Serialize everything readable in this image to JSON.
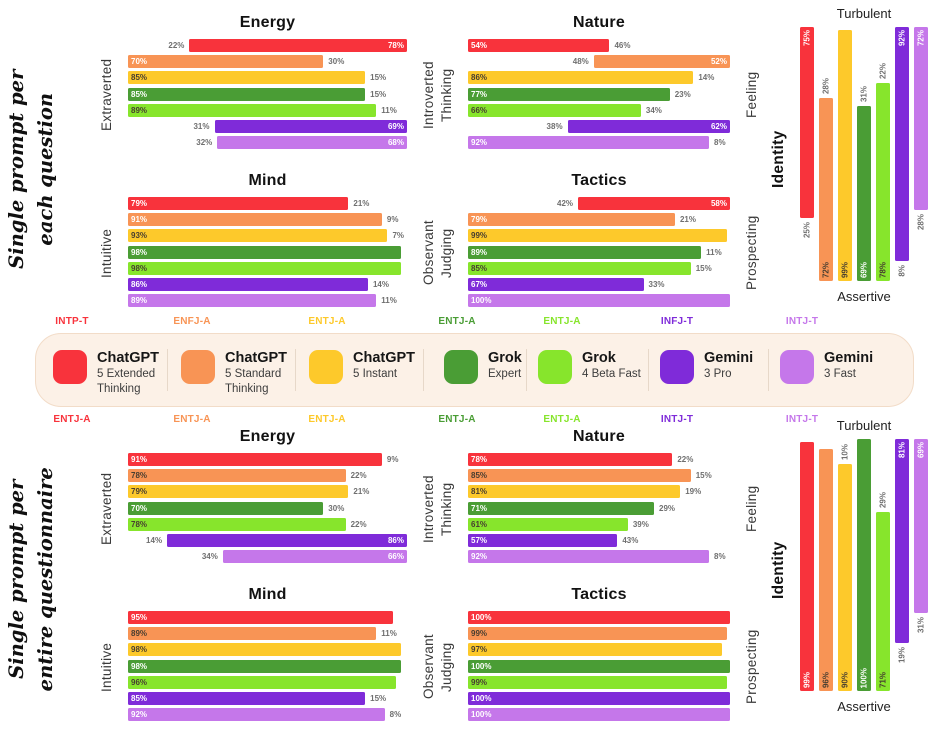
{
  "colors": {
    "red": "#F8333C",
    "orange": "#F89455",
    "yellow": "#FDC92B",
    "green": "#4A9D35",
    "lime": "#87E52C",
    "purple": "#7F2BD9",
    "lightpurple": "#C577EA"
  },
  "ui_colors": {
    "page_background": "#FFFFFF",
    "legend_background": "#FCF1E7",
    "legend_border": "#F2DCC8",
    "outside_label_gray": "#6F6F6F",
    "title_black": "#121212"
  },
  "color_order": [
    "red",
    "orange",
    "yellow",
    "green",
    "lime",
    "purple",
    "lightpurple"
  ],
  "legend": {
    "items": [
      {
        "name": "ChatGPT",
        "sub": "5 Extended Thinking",
        "color": "red"
      },
      {
        "name": "ChatGPT",
        "sub": "5 Standard Thinking",
        "color": "orange"
      },
      {
        "name": "ChatGPT",
        "sub": "5 Instant",
        "color": "yellow"
      },
      {
        "name": "Grok",
        "sub": "Expert",
        "color": "green"
      },
      {
        "name": "Grok",
        "sub": "4 Beta Fast",
        "color": "lime"
      },
      {
        "name": "Gemini",
        "sub": "3 Pro",
        "color": "purple"
      },
      {
        "name": "Gemini",
        "sub": "3 Fast",
        "color": "lightpurple"
      }
    ]
  },
  "sections": {
    "per_question": {
      "side_title_lines": [
        "Single prompt per",
        "each question"
      ],
      "mbti": [
        "INTP-T",
        "ENFJ-A",
        "ENTJ-A",
        "ENTJ-A",
        "ENTJ-A",
        "INFJ-T",
        "INTJ-T"
      ]
    },
    "per_questionnaire": {
      "side_title_lines": [
        "Single prompt per",
        "entire questionnaire"
      ],
      "mbti": [
        "ENTJ-A",
        "ENTJ-A",
        "ENTJ-A",
        "ENTJ-A",
        "ENTJ-A",
        "INTJ-T",
        "INTJ-T"
      ]
    }
  },
  "chart_data": [
    {
      "id": "q_energy",
      "section": "per_question",
      "type": "bar",
      "orientation": "horizontal",
      "title": "Energy",
      "pole_left": "Extraverted",
      "pole_right": "Introverted",
      "rows": [
        {
          "color": "red",
          "anchor": "right",
          "value": 78,
          "label_in": "78%",
          "label_out": "22%",
          "dark_label": false
        },
        {
          "color": "orange",
          "anchor": "left",
          "value": 70,
          "label_in": "70%",
          "label_out": "30%",
          "dark_label": false
        },
        {
          "color": "yellow",
          "anchor": "left",
          "value": 85,
          "label_in": "85%",
          "label_out": "15%",
          "dark_label": true
        },
        {
          "color": "green",
          "anchor": "left",
          "value": 85,
          "label_in": "85%",
          "label_out": "15%",
          "dark_label": false
        },
        {
          "color": "lime",
          "anchor": "left",
          "value": 89,
          "label_in": "89%",
          "label_out": "11%",
          "dark_label": true
        },
        {
          "color": "purple",
          "anchor": "right",
          "value": 69,
          "label_in": "69%",
          "label_out": "31%",
          "dark_label": false
        },
        {
          "color": "lightpurple",
          "anchor": "right",
          "value": 68,
          "label_in": "68%",
          "label_out": "32%",
          "dark_label": false
        }
      ]
    },
    {
      "id": "q_nature",
      "section": "per_question",
      "type": "bar",
      "orientation": "horizontal",
      "title": "Nature",
      "pole_left": "Thinking",
      "pole_right": "Feeling",
      "rows": [
        {
          "color": "red",
          "anchor": "left",
          "value": 54,
          "label_in": "54%",
          "label_out": "46%",
          "dark_label": false
        },
        {
          "color": "orange",
          "anchor": "right",
          "value": 52,
          "label_in": "52%",
          "label_out": "48%",
          "dark_label": false
        },
        {
          "color": "yellow",
          "anchor": "left",
          "value": 86,
          "label_in": "86%",
          "label_out": "14%",
          "dark_label": true
        },
        {
          "color": "green",
          "anchor": "left",
          "value": 77,
          "label_in": "77%",
          "label_out": "23%",
          "dark_label": false
        },
        {
          "color": "lime",
          "anchor": "left",
          "value": 66,
          "label_in": "66%",
          "label_out": "34%",
          "dark_label": true
        },
        {
          "color": "purple",
          "anchor": "right",
          "value": 62,
          "label_in": "62%",
          "label_out": "38%",
          "dark_label": false
        },
        {
          "color": "lightpurple",
          "anchor": "left",
          "value": 92,
          "label_in": "92%",
          "label_out": "8%",
          "dark_label": false
        }
      ]
    },
    {
      "id": "q_mind",
      "section": "per_question",
      "type": "bar",
      "orientation": "horizontal",
      "title": "Mind",
      "pole_left": "Intuitive",
      "pole_right": "Observant",
      "rows": [
        {
          "color": "red",
          "anchor": "left",
          "value": 79,
          "label_in": "79%",
          "label_out": "21%",
          "dark_label": false
        },
        {
          "color": "orange",
          "anchor": "left",
          "value": 91,
          "label_in": "91%",
          "label_out": "9%",
          "dark_label": false
        },
        {
          "color": "yellow",
          "anchor": "left",
          "value": 93,
          "label_in": "93%",
          "label_out": "7%",
          "dark_label": true
        },
        {
          "color": "green",
          "anchor": "left",
          "value": 98,
          "label_in": "98%",
          "label_out": "",
          "dark_label": false
        },
        {
          "color": "lime",
          "anchor": "left",
          "value": 98,
          "label_in": "98%",
          "label_out": "",
          "dark_label": true
        },
        {
          "color": "purple",
          "anchor": "left",
          "value": 86,
          "label_in": "86%",
          "label_out": "14%",
          "dark_label": false
        },
        {
          "color": "lightpurple",
          "anchor": "left",
          "value": 89,
          "label_in": "89%",
          "label_out": "11%",
          "dark_label": false
        }
      ]
    },
    {
      "id": "q_tactics",
      "section": "per_question",
      "type": "bar",
      "orientation": "horizontal",
      "title": "Tactics",
      "pole_left": "Judging",
      "pole_right": "Prospecting",
      "rows": [
        {
          "color": "red",
          "anchor": "right",
          "value": 58,
          "label_in": "58%",
          "label_out": "42%",
          "dark_label": false
        },
        {
          "color": "orange",
          "anchor": "left",
          "value": 79,
          "label_in": "79%",
          "label_out": "21%",
          "dark_label": false
        },
        {
          "color": "yellow",
          "anchor": "left",
          "value": 99,
          "label_in": "99%",
          "label_out": "",
          "dark_label": true
        },
        {
          "color": "green",
          "anchor": "left",
          "value": 89,
          "label_in": "89%",
          "label_out": "11%",
          "dark_label": false
        },
        {
          "color": "lime",
          "anchor": "left",
          "value": 85,
          "label_in": "85%",
          "label_out": "15%",
          "dark_label": true
        },
        {
          "color": "purple",
          "anchor": "left",
          "value": 67,
          "label_in": "67%",
          "label_out": "33%",
          "dark_label": false
        },
        {
          "color": "lightpurple",
          "anchor": "left",
          "value": 100,
          "label_in": "100%",
          "label_out": "",
          "dark_label": false
        }
      ]
    },
    {
      "id": "q_identity",
      "section": "per_question",
      "type": "bar",
      "orientation": "vertical",
      "title": "Identity",
      "pole_top": "Turbulent",
      "pole_bottom": "Assertive",
      "side_label": "Identity",
      "rows": [
        {
          "color": "red",
          "anchor": "top",
          "value": 75,
          "label_in": "75%",
          "label_out": "25%",
          "dark_label": false
        },
        {
          "color": "orange",
          "anchor": "bottom",
          "value": 72,
          "label_in": "72%",
          "label_out": "28%",
          "dark_label": true
        },
        {
          "color": "yellow",
          "anchor": "bottom",
          "value": 99,
          "label_in": "99%",
          "label_out": "",
          "dark_label": true
        },
        {
          "color": "green",
          "anchor": "bottom",
          "value": 69,
          "label_in": "69%",
          "label_out": "31%",
          "dark_label": false
        },
        {
          "color": "lime",
          "anchor": "bottom",
          "value": 78,
          "label_in": "78%",
          "label_out": "22%",
          "dark_label": true
        },
        {
          "color": "purple",
          "anchor": "top",
          "value": 92,
          "label_in": "92%",
          "label_out": "8%",
          "dark_label": false
        },
        {
          "color": "lightpurple",
          "anchor": "top",
          "value": 72,
          "label_in": "72%",
          "label_out": "28%",
          "dark_label": false
        }
      ]
    },
    {
      "id": "e_energy",
      "section": "per_questionnaire",
      "type": "bar",
      "orientation": "horizontal",
      "title": "Energy",
      "pole_left": "Extraverted",
      "pole_right": "Introverted",
      "rows": [
        {
          "color": "red",
          "anchor": "left",
          "value": 91,
          "label_in": "91%",
          "label_out": "9%",
          "dark_label": false
        },
        {
          "color": "orange",
          "anchor": "left",
          "value": 78,
          "label_in": "78%",
          "label_out": "22%",
          "dark_label": true
        },
        {
          "color": "yellow",
          "anchor": "left",
          "value": 79,
          "label_in": "79%",
          "label_out": "21%",
          "dark_label": true
        },
        {
          "color": "green",
          "anchor": "left",
          "value": 70,
          "label_in": "70%",
          "label_out": "30%",
          "dark_label": false
        },
        {
          "color": "lime",
          "anchor": "left",
          "value": 78,
          "label_in": "78%",
          "label_out": "22%",
          "dark_label": true
        },
        {
          "color": "purple",
          "anchor": "right",
          "value": 86,
          "label_in": "86%",
          "label_out": "14%",
          "dark_label": false
        },
        {
          "color": "lightpurple",
          "anchor": "right",
          "value": 66,
          "label_in": "66%",
          "label_out": "34%",
          "dark_label": false
        }
      ]
    },
    {
      "id": "e_nature",
      "section": "per_questionnaire",
      "type": "bar",
      "orientation": "horizontal",
      "title": "Nature",
      "pole_left": "Thinking",
      "pole_right": "Feeling",
      "rows": [
        {
          "color": "red",
          "anchor": "left",
          "value": 78,
          "label_in": "78%",
          "label_out": "22%",
          "dark_label": false
        },
        {
          "color": "orange",
          "anchor": "left",
          "value": 85,
          "label_in": "85%",
          "label_out": "15%",
          "dark_label": true
        },
        {
          "color": "yellow",
          "anchor": "left",
          "value": 81,
          "label_in": "81%",
          "label_out": "19%",
          "dark_label": true
        },
        {
          "color": "green",
          "anchor": "left",
          "value": 71,
          "label_in": "71%",
          "label_out": "29%",
          "dark_label": false
        },
        {
          "color": "lime",
          "anchor": "left",
          "value": 61,
          "label_in": "61%",
          "label_out": "39%",
          "dark_label": true
        },
        {
          "color": "purple",
          "anchor": "left",
          "value": 57,
          "label_in": "57%",
          "label_out": "43%",
          "dark_label": false
        },
        {
          "color": "lightpurple",
          "anchor": "left",
          "value": 92,
          "label_in": "92%",
          "label_out": "8%",
          "dark_label": false
        }
      ]
    },
    {
      "id": "e_mind",
      "section": "per_questionnaire",
      "type": "bar",
      "orientation": "horizontal",
      "title": "Mind",
      "pole_left": "Intuitive",
      "pole_right": "Observant",
      "rows": [
        {
          "color": "red",
          "anchor": "left",
          "value": 95,
          "label_in": "95%",
          "label_out": "",
          "dark_label": false
        },
        {
          "color": "orange",
          "anchor": "left",
          "value": 89,
          "label_in": "89%",
          "label_out": "11%",
          "dark_label": true
        },
        {
          "color": "yellow",
          "anchor": "left",
          "value": 98,
          "label_in": "98%",
          "label_out": "",
          "dark_label": true
        },
        {
          "color": "green",
          "anchor": "left",
          "value": 98,
          "label_in": "98%",
          "label_out": "",
          "dark_label": false
        },
        {
          "color": "lime",
          "anchor": "left",
          "value": 96,
          "label_in": "96%",
          "label_out": "",
          "dark_label": true
        },
        {
          "color": "purple",
          "anchor": "left",
          "value": 85,
          "label_in": "85%",
          "label_out": "15%",
          "dark_label": false
        },
        {
          "color": "lightpurple",
          "anchor": "left",
          "value": 92,
          "label_in": "92%",
          "label_out": "8%",
          "dark_label": false
        }
      ]
    },
    {
      "id": "e_tactics",
      "section": "per_questionnaire",
      "type": "bar",
      "orientation": "horizontal",
      "title": "Tactics",
      "pole_left": "Judging",
      "pole_right": "Prospecting",
      "rows": [
        {
          "color": "red",
          "anchor": "left",
          "value": 100,
          "label_in": "100%",
          "label_out": "",
          "dark_label": false
        },
        {
          "color": "orange",
          "anchor": "left",
          "value": 99,
          "label_in": "99%",
          "label_out": "",
          "dark_label": true
        },
        {
          "color": "yellow",
          "anchor": "left",
          "value": 97,
          "label_in": "97%",
          "label_out": "",
          "dark_label": true
        },
        {
          "color": "green",
          "anchor": "left",
          "value": 100,
          "label_in": "100%",
          "label_out": "",
          "dark_label": false
        },
        {
          "color": "lime",
          "anchor": "left",
          "value": 99,
          "label_in": "99%",
          "label_out": "",
          "dark_label": true
        },
        {
          "color": "purple",
          "anchor": "left",
          "value": 100,
          "label_in": "100%",
          "label_out": "",
          "dark_label": false
        },
        {
          "color": "lightpurple",
          "anchor": "left",
          "value": 100,
          "label_in": "100%",
          "label_out": "",
          "dark_label": false
        }
      ]
    },
    {
      "id": "e_identity",
      "section": "per_questionnaire",
      "type": "bar",
      "orientation": "vertical",
      "title": "Identity",
      "pole_top": "Turbulent",
      "pole_bottom": "Assertive",
      "side_label": "Identity",
      "rows": [
        {
          "color": "red",
          "anchor": "bottom",
          "value": 99,
          "label_in": "99%",
          "label_out": "",
          "dark_label": false
        },
        {
          "color": "orange",
          "anchor": "bottom",
          "value": 96,
          "label_in": "96%",
          "label_out": "",
          "dark_label": true
        },
        {
          "color": "yellow",
          "anchor": "bottom",
          "value": 90,
          "label_in": "90%",
          "label_out": "10%",
          "dark_label": true
        },
        {
          "color": "green",
          "anchor": "bottom",
          "value": 100,
          "label_in": "100%",
          "label_out": "",
          "dark_label": false
        },
        {
          "color": "lime",
          "anchor": "bottom",
          "value": 71,
          "label_in": "71%",
          "label_out": "29%",
          "dark_label": true
        },
        {
          "color": "purple",
          "anchor": "top",
          "value": 81,
          "label_in": "81%",
          "label_out": "19%",
          "dark_label": false
        },
        {
          "color": "lightpurple",
          "anchor": "top",
          "value": 69,
          "label_in": "69%",
          "label_out": "31%",
          "dark_label": false
        }
      ]
    }
  ]
}
